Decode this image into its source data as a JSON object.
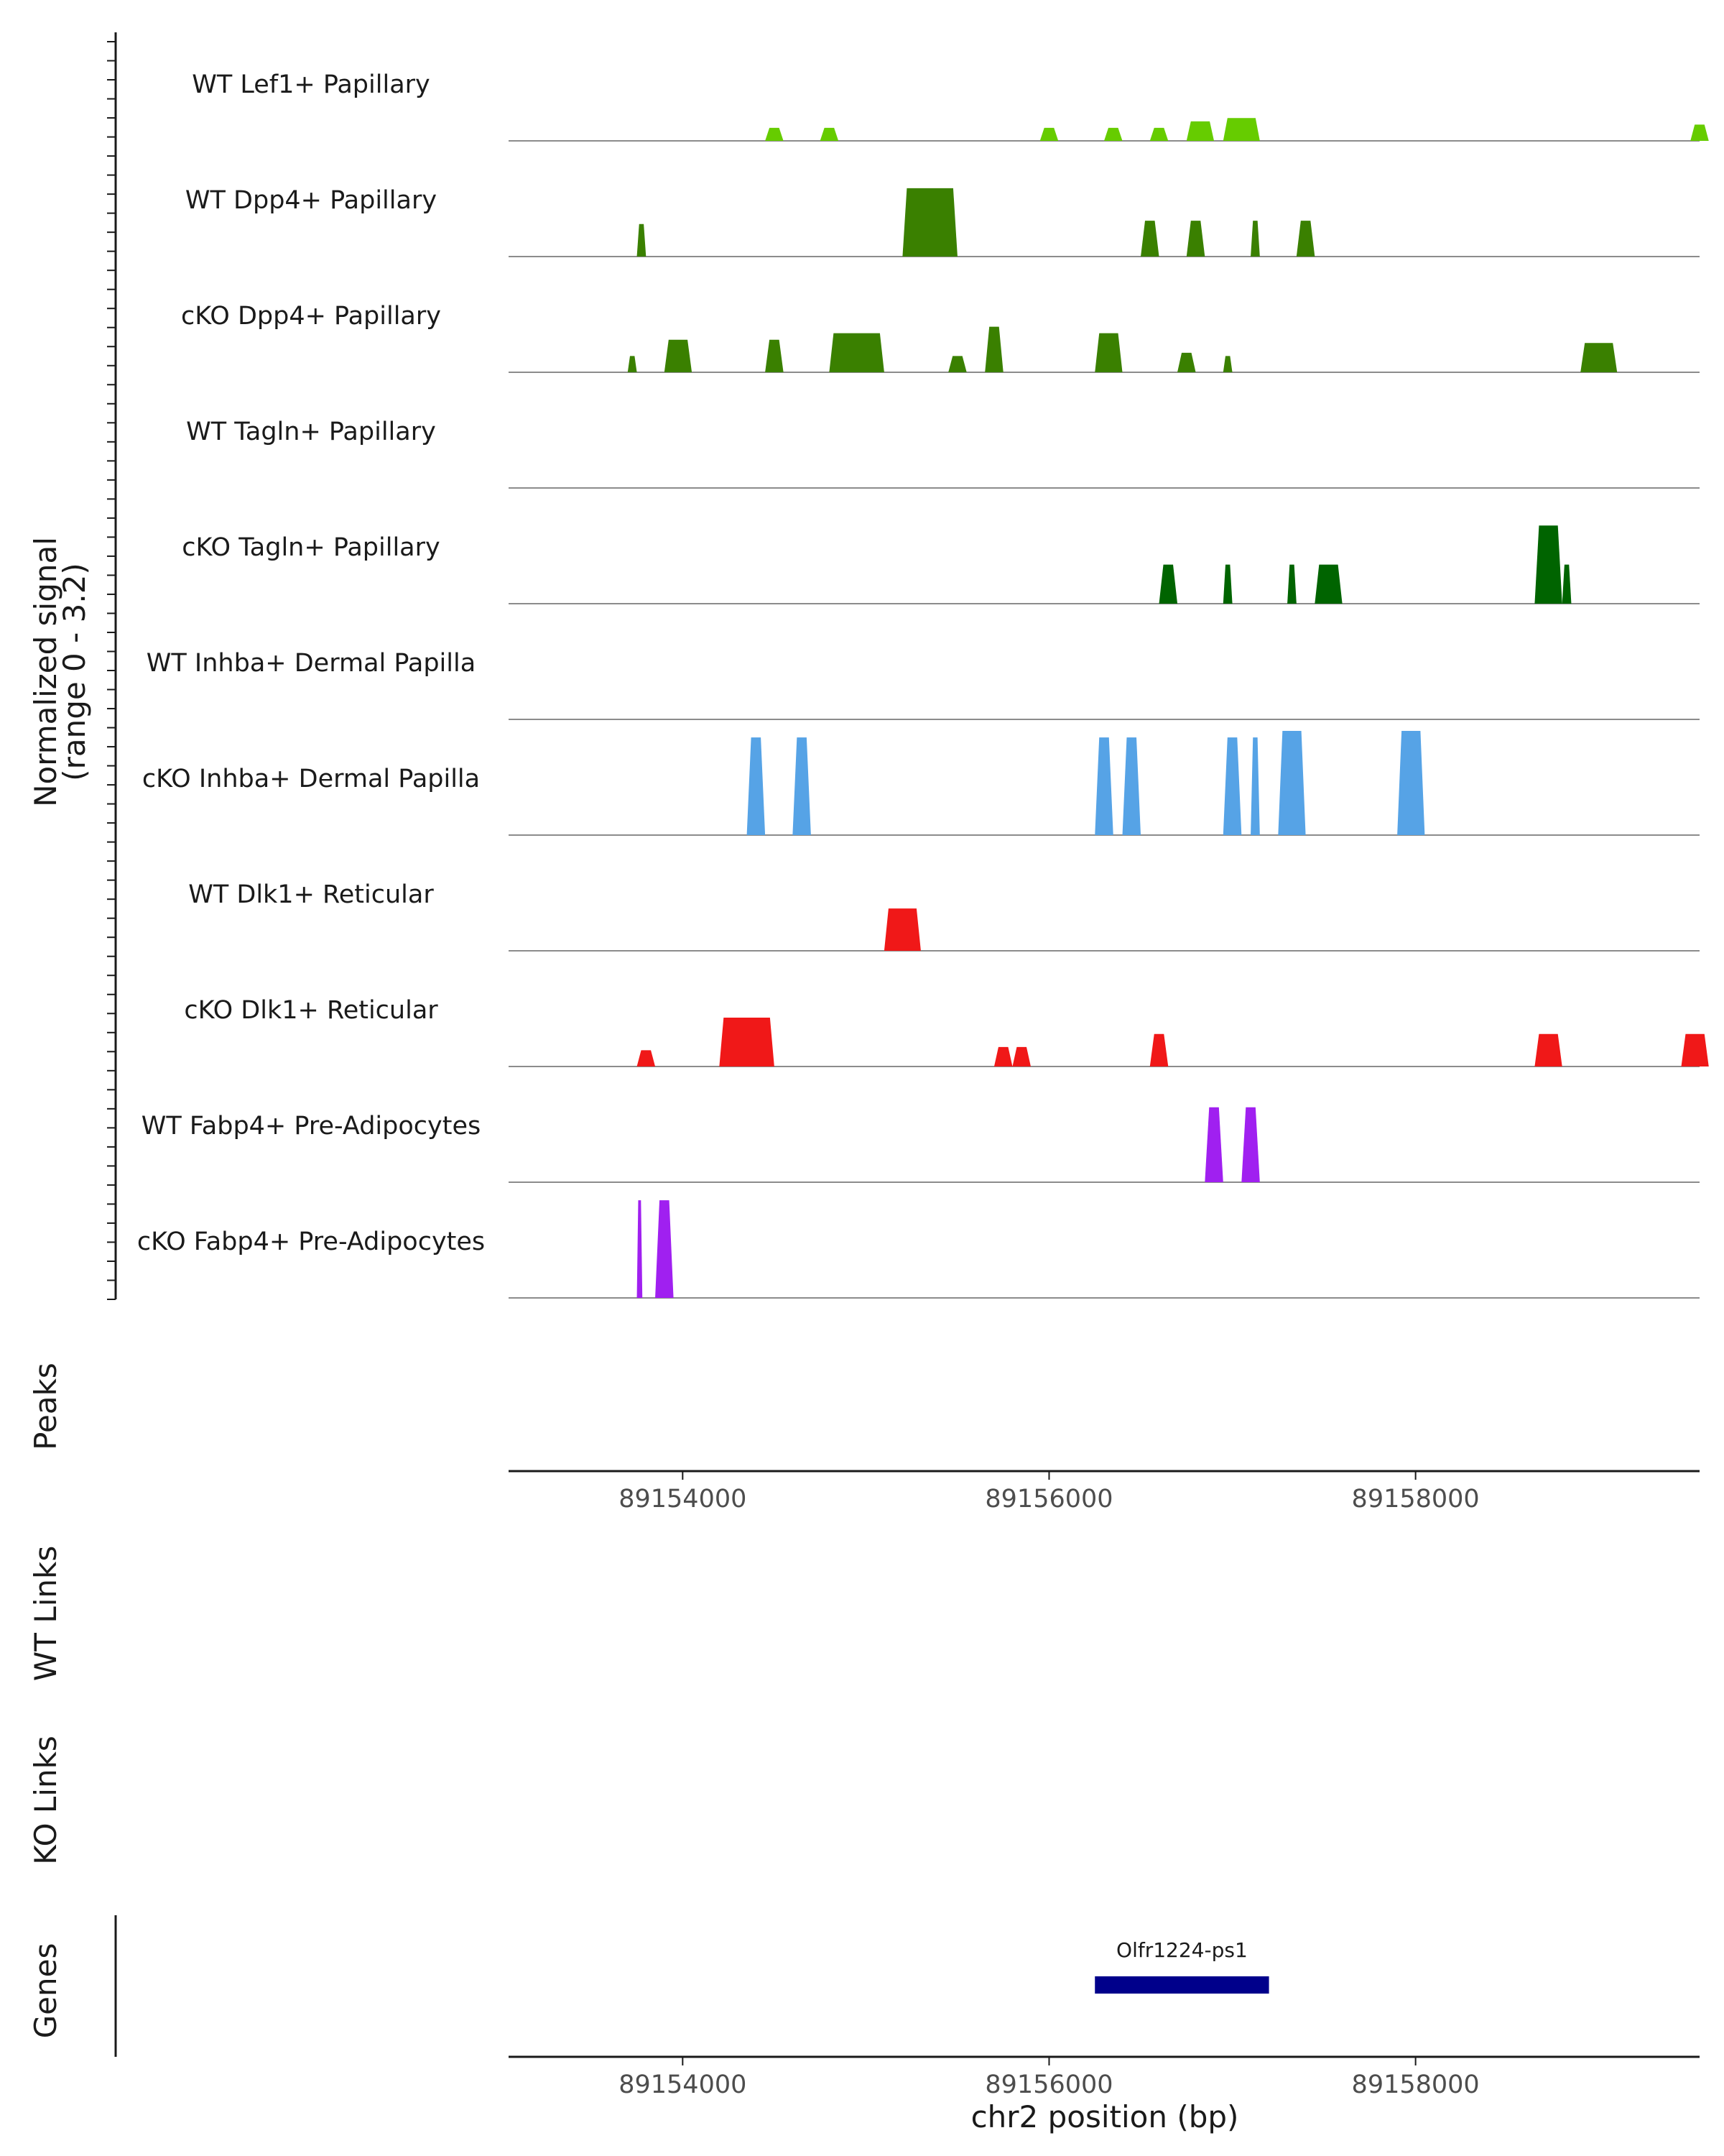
{
  "chart_data": {
    "type": "area",
    "title": "",
    "chromosome": "chr2",
    "xlim": [
      89153050,
      89159550
    ],
    "ylabel": "Normalized signal\n(range 0 - 3.2)",
    "signal_range": [
      0,
      3.2
    ],
    "xlabel": "chr2 position (bp)",
    "xticks": [
      89154000,
      89156000,
      89158000
    ],
    "xtick_labels": [
      "89154000",
      "89156000",
      "89158000"
    ],
    "tracks": [
      {
        "name": "WT Lef1+ Papillary",
        "color": "#66CC00",
        "peaks": [
          [
            89154450,
            89154550,
            0.4
          ],
          [
            89154750,
            89154850,
            0.4
          ],
          [
            89155950,
            89156050,
            0.4
          ],
          [
            89156300,
            89156400,
            0.4
          ],
          [
            89156550,
            89156650,
            0.4
          ],
          [
            89156750,
            89156900,
            0.6
          ],
          [
            89156950,
            89157150,
            0.7
          ],
          [
            89159500,
            89159600,
            0.5
          ]
        ]
      },
      {
        "name": "WT Dpp4+ Papillary",
        "color": "#3A8000",
        "peaks": [
          [
            89153750,
            89153800,
            1.0
          ],
          [
            89155200,
            89155500,
            2.1
          ],
          [
            89156500,
            89156600,
            1.1
          ],
          [
            89156750,
            89156850,
            1.1
          ],
          [
            89157100,
            89157150,
            1.1
          ],
          [
            89157350,
            89157450,
            1.1
          ]
        ]
      },
      {
        "name": "cKO Dpp4+ Papillary",
        "color": "#3A8000",
        "peaks": [
          [
            89153700,
            89153750,
            0.5
          ],
          [
            89153900,
            89154050,
            1.0
          ],
          [
            89154450,
            89154550,
            1.0
          ],
          [
            89154800,
            89155100,
            1.2
          ],
          [
            89155450,
            89155550,
            0.5
          ],
          [
            89155650,
            89155750,
            1.4
          ],
          [
            89156250,
            89156400,
            1.2
          ],
          [
            89156700,
            89156800,
            0.6
          ],
          [
            89156950,
            89157000,
            0.5
          ],
          [
            89158900,
            89159100,
            0.9
          ]
        ]
      },
      {
        "name": "WT Tagln+ Papillary",
        "color": "#006400",
        "peaks": []
      },
      {
        "name": "cKO Tagln+ Papillary",
        "color": "#006400",
        "peaks": [
          [
            89156600,
            89156700,
            1.2
          ],
          [
            89156950,
            89157000,
            1.2
          ],
          [
            89157300,
            89157350,
            1.2
          ],
          [
            89157450,
            89157600,
            1.2
          ],
          [
            89158650,
            89158800,
            2.4
          ],
          [
            89158800,
            89158850,
            1.2
          ]
        ]
      },
      {
        "name": "WT Inhba+ Dermal Papilla",
        "color": "#56A3E6",
        "peaks": []
      },
      {
        "name": "cKO Inhba+ Dermal Papilla",
        "color": "#56A3E6",
        "peaks": [
          [
            89154350,
            89154450,
            3.0
          ],
          [
            89154600,
            89154700,
            3.0
          ],
          [
            89156250,
            89156350,
            3.0
          ],
          [
            89156400,
            89156500,
            3.0
          ],
          [
            89156950,
            89157050,
            3.0
          ],
          [
            89157100,
            89157150,
            3.0
          ],
          [
            89157250,
            89157400,
            3.2
          ],
          [
            89157900,
            89158050,
            3.2
          ]
        ]
      },
      {
        "name": "WT Dlk1+ Reticular",
        "color": "#F01818",
        "peaks": [
          [
            89155100,
            89155300,
            1.3
          ]
        ]
      },
      {
        "name": "cKO Dlk1+ Reticular",
        "color": "#F01818",
        "peaks": [
          [
            89153750,
            89153850,
            0.5
          ],
          [
            89154200,
            89154500,
            1.5
          ],
          [
            89155700,
            89155800,
            0.6
          ],
          [
            89155800,
            89155900,
            0.6
          ],
          [
            89156550,
            89156650,
            1.0
          ],
          [
            89158650,
            89158800,
            1.0
          ],
          [
            89159450,
            89159600,
            1.0
          ]
        ]
      },
      {
        "name": "WT Fabp4+ Pre-Adipocytes",
        "color": "#A020F0",
        "peaks": [
          [
            89156850,
            89156950,
            2.3
          ],
          [
            89157050,
            89157150,
            2.3
          ]
        ]
      },
      {
        "name": "cKO Fabp4+ Pre-Adipocytes",
        "color": "#A020F0",
        "peaks": [
          [
            89153750,
            89153780,
            3.0
          ],
          [
            89153850,
            89153950,
            3.0
          ]
        ]
      }
    ],
    "side_panels": [
      "Peaks",
      "WT Links",
      "KO Links",
      "Genes"
    ],
    "genes": [
      {
        "name": "Olfr1224-ps1",
        "start": 89156250,
        "end": 89157200,
        "color": "#00008B"
      }
    ]
  }
}
